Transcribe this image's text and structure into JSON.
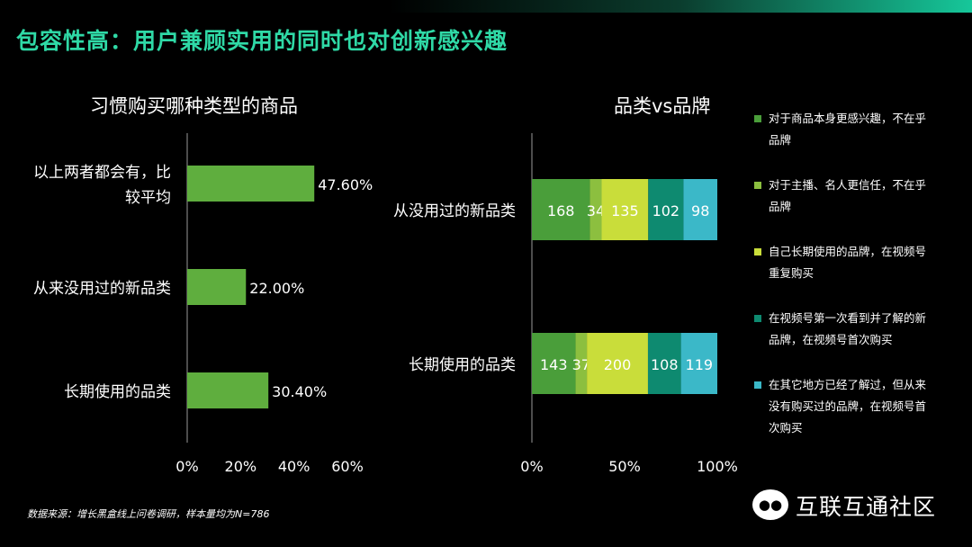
{
  "header": {
    "title": "包容性高：用户兼顾实用的同时也对创新感兴趣"
  },
  "chart_data": [
    {
      "type": "bar",
      "orientation": "horizontal",
      "title": "习惯购买哪种类型的商品",
      "categories": [
        "以上两者都会有，比较平均",
        "从来没用过的新品类",
        "长期使用的品类"
      ],
      "category_lines": [
        [
          "以上两者都会有，比",
          "较平均"
        ],
        [
          "从来没用过的新品类"
        ],
        [
          "长期使用的品类"
        ]
      ],
      "values": [
        47.6,
        22.0,
        30.4
      ],
      "value_labels": [
        "47.60%",
        "22.00%",
        "30.40%"
      ],
      "xlim": [
        0,
        60
      ],
      "ticks": [
        "0%",
        "20%",
        "40%",
        "60%"
      ],
      "tick_values": [
        0,
        20,
        40,
        60
      ],
      "color": "#5fae3e"
    },
    {
      "type": "bar",
      "orientation": "horizontal",
      "stacked": "percent",
      "title": "品类vs品牌",
      "categories": [
        "从没用过的新品类",
        "长期使用的品类"
      ],
      "series": [
        {
          "name": "对于商品本身更感兴趣，不在乎品牌",
          "color": "#4a9e3a",
          "values": [
            168,
            143
          ]
        },
        {
          "name": "对于主播、名人更信任，不在乎品牌",
          "color": "#8cbf3f",
          "values": [
            34,
            37
          ]
        },
        {
          "name": "自己长期使用的品牌，在视频号重复购买",
          "color": "#c9dd3a",
          "values": [
            135,
            200
          ]
        },
        {
          "name": "在视频号第一次看到并了解的新品牌，在视频号首次购买",
          "color": "#0e8a70",
          "values": [
            102,
            108
          ]
        },
        {
          "name": "在其它地方已经了解过，但从来没有购买过的品牌，在视频号首次购买",
          "color": "#3bb8c8",
          "values": [
            98,
            119
          ]
        }
      ],
      "ticks": [
        "0%",
        "50%",
        "100%"
      ],
      "tick_values": [
        0,
        50,
        100
      ]
    }
  ],
  "legend_lines": [
    [
      "对于商品本身更感兴趣，不在乎",
      "品牌"
    ],
    [
      "对于主播、名人更信任，不在乎",
      "品牌"
    ],
    [
      "自己长期使用的品牌，在视频号",
      "重复购买"
    ],
    [
      "在视频号第一次看到并了解的新",
      "品牌，在视频号首次购买"
    ],
    [
      "在其它地方已经了解过，但从来",
      "没有购买过的品牌，在视频号首",
      "次购买"
    ]
  ],
  "footer": {
    "source": "数据来源：增长黑盒线上问卷调研，样本量均为N=786",
    "brand": "互联互通社区",
    "brand_icon": "wechat-icon"
  }
}
